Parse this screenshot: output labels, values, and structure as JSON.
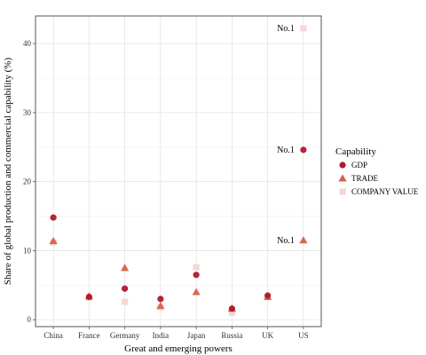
{
  "chart_data": {
    "type": "scatter",
    "title": "",
    "xlabel": "Great and emerging powers",
    "ylabel": "Share of global production and commercial capability (%)",
    "categories": [
      "China",
      "France",
      "Germany",
      "India",
      "Japan",
      "Russia",
      "UK",
      "US"
    ],
    "ylim": [
      -1,
      44
    ],
    "yticks": [
      0,
      10,
      20,
      30,
      40
    ],
    "grid": true,
    "legend": {
      "title": "Capability",
      "position": "right"
    },
    "series": [
      {
        "name": "GDP",
        "marker": "circle",
        "color": "#b2182b",
        "values": [
          14.8,
          3.3,
          4.5,
          3.0,
          6.5,
          1.6,
          3.5,
          24.6
        ]
      },
      {
        "name": "TRADE",
        "marker": "triangle",
        "color": "#d6604d",
        "values": [
          11.4,
          3.4,
          7.5,
          2.0,
          4.0,
          1.6,
          3.3,
          11.5
        ]
      },
      {
        "name": "COMPANY VALUE",
        "marker": "square",
        "color": "#f4d6d3",
        "values": [
          11.2,
          3.2,
          2.6,
          1.8,
          7.6,
          1.0,
          3.3,
          42.2
        ]
      }
    ],
    "annotations": [
      {
        "category": "US",
        "y": 42.2,
        "text": "No.1"
      },
      {
        "category": "US",
        "y": 24.6,
        "text": "No.1"
      },
      {
        "category": "US",
        "y": 11.5,
        "text": "No.1"
      }
    ]
  }
}
